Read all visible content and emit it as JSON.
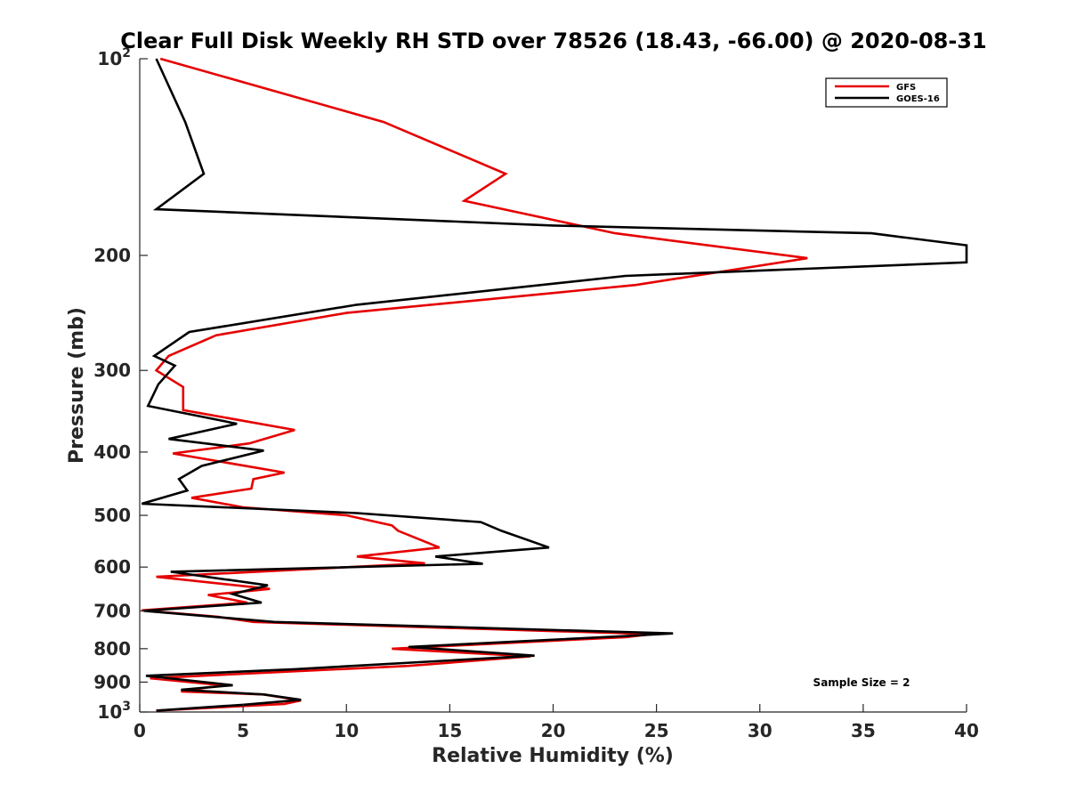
{
  "chart_data": {
    "type": "line",
    "title": "Clear Full Disk Weekly RH STD over 78526 (18.43, -66.00) @ 2020-08-31",
    "xlabel": "Relative Humidity (%)",
    "ylabel": "Pressure (mb)",
    "xlim": [
      0,
      40
    ],
    "ylim": [
      100,
      1000
    ],
    "yscale": "log",
    "y_reversed": true,
    "grid": false,
    "legend_position": "top-right",
    "x_ticks": [
      0,
      5,
      10,
      15,
      20,
      25,
      30,
      35,
      40
    ],
    "x_tick_labels": [
      "0",
      "5",
      "10",
      "15",
      "20",
      "25",
      "30",
      "35",
      "40"
    ],
    "y_ticks": [
      100,
      200,
      300,
      400,
      500,
      600,
      700,
      800,
      900,
      1000
    ],
    "y_tick_labels": [
      {
        "base": "10",
        "exp": "2"
      },
      {
        "base": "200",
        "exp": ""
      },
      {
        "base": "300",
        "exp": ""
      },
      {
        "base": "400",
        "exp": ""
      },
      {
        "base": "500",
        "exp": ""
      },
      {
        "base": "600",
        "exp": ""
      },
      {
        "base": "700",
        "exp": ""
      },
      {
        "base": "800",
        "exp": ""
      },
      {
        "base": "900",
        "exp": ""
      },
      {
        "base": "10",
        "exp": "3"
      }
    ],
    "annotation": "Sample Size = 2",
    "series": [
      {
        "name": "GFS",
        "color": "#e60000",
        "points": [
          [
            1,
            100
          ],
          [
            11.8,
            125
          ],
          [
            17.7,
            150
          ],
          [
            15.7,
            165
          ],
          [
            23,
            185
          ],
          [
            32.3,
            202
          ],
          [
            24,
            222
          ],
          [
            10,
            245
          ],
          [
            3.7,
            265
          ],
          [
            1.4,
            285
          ],
          [
            0.8,
            300
          ],
          [
            2.1,
            318
          ],
          [
            2.1,
            345
          ],
          [
            7.5,
            370
          ],
          [
            5.3,
            388
          ],
          [
            1.6,
            402
          ],
          [
            7,
            430
          ],
          [
            5.5,
            440
          ],
          [
            5.4,
            455
          ],
          [
            2.5,
            470
          ],
          [
            5,
            486
          ],
          [
            10,
            500
          ],
          [
            12.2,
            518
          ],
          [
            12.5,
            528
          ],
          [
            14.5,
            560
          ],
          [
            10.5,
            578
          ],
          [
            13.8,
            592
          ],
          [
            0.8,
            621
          ],
          [
            6.3,
            648
          ],
          [
            3.3,
            662
          ],
          [
            5.2,
            680
          ],
          [
            0.1,
            699
          ],
          [
            3.8,
            715
          ],
          [
            5.5,
            728
          ],
          [
            24.8,
            760
          ],
          [
            23.5,
            768
          ],
          [
            12.2,
            800
          ],
          [
            18.9,
            822
          ],
          [
            13,
            850
          ],
          [
            0.5,
            888
          ],
          [
            4,
            910
          ],
          [
            2,
            930
          ],
          [
            6,
            940
          ],
          [
            7.8,
            960
          ],
          [
            7,
            972
          ],
          [
            0.8,
            995
          ]
        ]
      },
      {
        "name": "GOES-16",
        "color": "#000000",
        "points": [
          [
            0.8,
            100
          ],
          [
            2.2,
            125
          ],
          [
            3.1,
            150
          ],
          [
            0.8,
            170
          ],
          [
            20,
            180
          ],
          [
            35.4,
            185
          ],
          [
            40,
            193
          ],
          [
            40,
            205
          ],
          [
            23.5,
            215
          ],
          [
            10.5,
            238
          ],
          [
            2.4,
            262
          ],
          [
            0.7,
            285
          ],
          [
            1.7,
            295
          ],
          [
            0.9,
            315
          ],
          [
            0.4,
            340
          ],
          [
            4.7,
            362
          ],
          [
            1.4,
            382
          ],
          [
            6,
            398
          ],
          [
            3,
            420
          ],
          [
            1.9,
            440
          ],
          [
            2.3,
            458
          ],
          [
            0.1,
            480
          ],
          [
            10.5,
            496
          ],
          [
            16.5,
            512
          ],
          [
            17.5,
            528
          ],
          [
            19.8,
            560
          ],
          [
            14.3,
            578
          ],
          [
            16.6,
            593
          ],
          [
            1.5,
            610
          ],
          [
            6.2,
            640
          ],
          [
            4.5,
            660
          ],
          [
            5.9,
            680
          ],
          [
            0.2,
            700
          ],
          [
            6.5,
            728
          ],
          [
            25.8,
            758
          ],
          [
            23.2,
            766
          ],
          [
            13,
            795
          ],
          [
            19.1,
            820
          ],
          [
            7.5,
            860
          ],
          [
            0.3,
            880
          ],
          [
            4.5,
            910
          ],
          [
            2,
            925
          ],
          [
            6,
            940
          ],
          [
            7.8,
            958
          ],
          [
            5,
            975
          ],
          [
            0.8,
            995
          ]
        ]
      }
    ]
  }
}
